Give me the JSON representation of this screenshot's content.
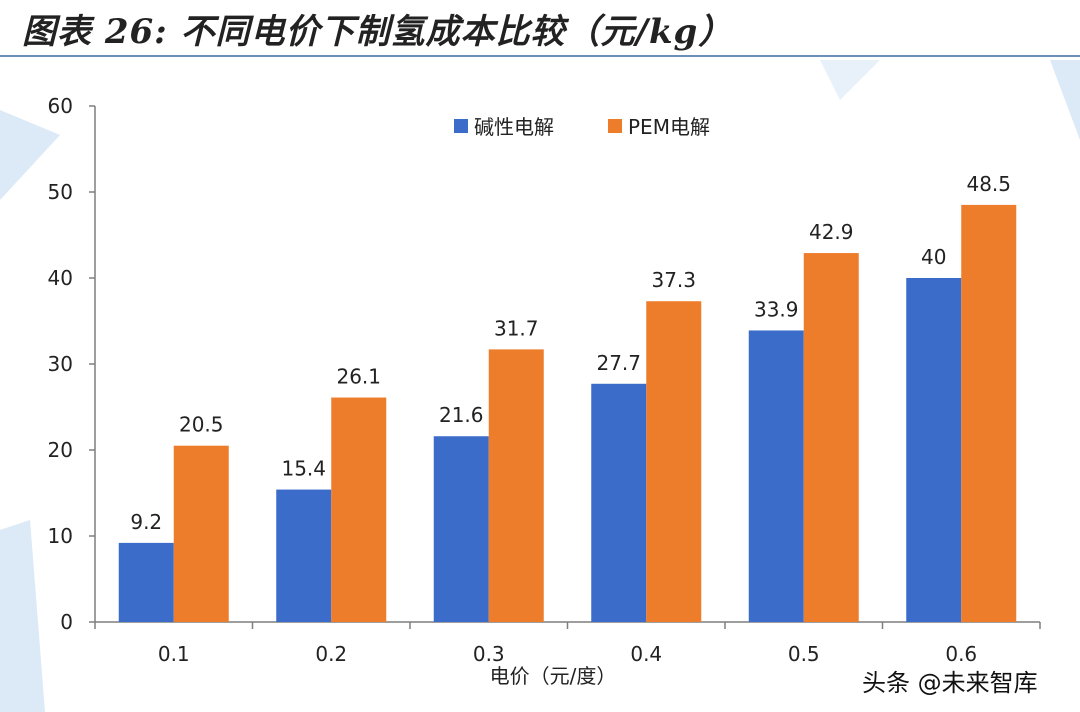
{
  "title": "图表 26:  不同电价下制氢成本比较（元/kg）",
  "watermark": "头条 @未来智库",
  "colors": {
    "alkaline": "#3b6cc9",
    "pem": "#ee7d2b",
    "axis": "#7f7f7f",
    "deco": "#dce9f6"
  },
  "chart_data": {
    "type": "bar",
    "categories": [
      "0.1",
      "0.2",
      "0.3",
      "0.4",
      "0.5",
      "0.6"
    ],
    "series": [
      {
        "name": "碱性电解",
        "values": [
          9.2,
          15.4,
          21.6,
          27.7,
          33.9,
          40
        ]
      },
      {
        "name": "PEM电解",
        "values": [
          20.5,
          26.1,
          31.7,
          37.3,
          42.9,
          48.5
        ]
      }
    ],
    "xlabel": "电价（元/度）",
    "ylabel": "",
    "ylim": [
      0,
      60
    ],
    "yticks": [
      0,
      10,
      20,
      30,
      40,
      50,
      60
    ],
    "legend_position": "top",
    "grid": false
  }
}
